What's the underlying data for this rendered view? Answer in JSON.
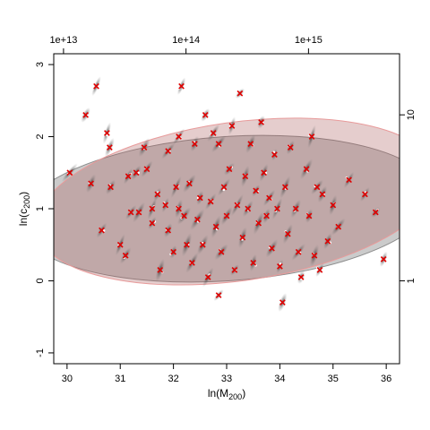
{
  "chart_data": {
    "type": "scatter",
    "xlabel_base": "ln(M",
    "xlabel_sub": "200",
    "xlabel_close": ")",
    "ylabel_base": "ln(c",
    "ylabel_sub": "200",
    "ylabel_close": ")",
    "xlim": [
      29.75,
      36.25
    ],
    "ylim": [
      -1.15,
      3.15
    ],
    "x_ticks": [
      30,
      31,
      32,
      33,
      34,
      35,
      36
    ],
    "y_ticks": [
      -1,
      0,
      1,
      2,
      3
    ],
    "top_axis": {
      "scale": "log",
      "ticks": [
        {
          "value": 10000000000000.0,
          "label": "1e+13"
        },
        {
          "value": 100000000000000.0,
          "label": "1e+14"
        },
        {
          "value": 1000000000000000.0,
          "label": "1e+15"
        }
      ]
    },
    "right_axis": {
      "scale": "log",
      "ticks": [
        {
          "value": 1,
          "label": "1"
        },
        {
          "value": 10,
          "label": "10"
        }
      ]
    },
    "grid": false,
    "colors": {
      "posterior_clouds": "#555555",
      "posterior_means": "#ffffff",
      "true_values": "#e00000",
      "ellipse_estimated": "#8c8c8c",
      "ellipse_true": "#e89a9a"
    },
    "ellipses": [
      {
        "name": "estimated",
        "center": [
          33.0,
          1.0
        ],
        "semi_axes": [
          3.9,
          1.0
        ],
        "angle_deg": -4
      },
      {
        "name": "true",
        "center": [
          33.2,
          1.1
        ],
        "semi_axes": [
          3.8,
          1.1
        ],
        "angle_deg": -8
      }
    ],
    "marker_points": [
      {
        "x": 30.05,
        "y": 1.5
      },
      {
        "x": 30.35,
        "y": 2.3
      },
      {
        "x": 30.45,
        "y": 1.35
      },
      {
        "x": 30.55,
        "y": 2.7
      },
      {
        "x": 30.75,
        "y": 2.05
      },
      {
        "x": 30.8,
        "y": 1.85
      },
      {
        "x": 30.82,
        "y": 1.3
      },
      {
        "x": 30.65,
        "y": 0.7
      },
      {
        "x": 31.0,
        "y": 0.5
      },
      {
        "x": 31.15,
        "y": 1.45
      },
      {
        "x": 31.3,
        "y": 1.5
      },
      {
        "x": 31.2,
        "y": 0.95
      },
      {
        "x": 31.1,
        "y": 0.35
      },
      {
        "x": 31.35,
        "y": 0.95
      },
      {
        "x": 31.45,
        "y": 1.85
      },
      {
        "x": 31.5,
        "y": 1.55
      },
      {
        "x": 31.6,
        "y": 1.0
      },
      {
        "x": 31.6,
        "y": 0.8
      },
      {
        "x": 31.7,
        "y": 1.2
      },
      {
        "x": 31.75,
        "y": 0.15
      },
      {
        "x": 31.85,
        "y": 1.05
      },
      {
        "x": 31.9,
        "y": 1.8
      },
      {
        "x": 31.9,
        "y": 0.7
      },
      {
        "x": 32.0,
        "y": 0.4
      },
      {
        "x": 32.05,
        "y": 1.3
      },
      {
        "x": 32.1,
        "y": 1.0
      },
      {
        "x": 32.1,
        "y": 2.0
      },
      {
        "x": 32.15,
        "y": 2.7
      },
      {
        "x": 32.2,
        "y": 0.9
      },
      {
        "x": 32.25,
        "y": 0.5
      },
      {
        "x": 32.3,
        "y": 1.35
      },
      {
        "x": 32.35,
        "y": 0.25
      },
      {
        "x": 32.4,
        "y": 1.9
      },
      {
        "x": 32.45,
        "y": 0.85
      },
      {
        "x": 32.5,
        "y": 1.15
      },
      {
        "x": 32.55,
        "y": 0.5
      },
      {
        "x": 32.6,
        "y": 2.3
      },
      {
        "x": 32.65,
        "y": 0.05
      },
      {
        "x": 32.7,
        "y": 1.1
      },
      {
        "x": 32.75,
        "y": 2.05
      },
      {
        "x": 32.8,
        "y": 0.75
      },
      {
        "x": 32.85,
        "y": 1.9
      },
      {
        "x": 32.85,
        "y": -0.2
      },
      {
        "x": 32.9,
        "y": 0.4
      },
      {
        "x": 32.95,
        "y": 1.3
      },
      {
        "x": 33.0,
        "y": 0.9
      },
      {
        "x": 33.05,
        "y": 1.55
      },
      {
        "x": 33.1,
        "y": 2.15
      },
      {
        "x": 33.15,
        "y": 0.15
      },
      {
        "x": 33.2,
        "y": 1.05
      },
      {
        "x": 33.25,
        "y": 2.6
      },
      {
        "x": 33.3,
        "y": 0.6
      },
      {
        "x": 33.35,
        "y": 1.45
      },
      {
        "x": 33.4,
        "y": 1.0
      },
      {
        "x": 33.45,
        "y": 1.9
      },
      {
        "x": 33.5,
        "y": 0.25
      },
      {
        "x": 33.55,
        "y": 1.25
      },
      {
        "x": 33.6,
        "y": 0.8
      },
      {
        "x": 33.65,
        "y": 2.2
      },
      {
        "x": 33.7,
        "y": 1.5
      },
      {
        "x": 33.75,
        "y": 0.9
      },
      {
        "x": 33.8,
        "y": 1.15
      },
      {
        "x": 33.85,
        "y": 0.45
      },
      {
        "x": 33.9,
        "y": 1.75
      },
      {
        "x": 33.95,
        "y": 1.0
      },
      {
        "x": 34.0,
        "y": 0.2
      },
      {
        "x": 34.05,
        "y": -0.3
      },
      {
        "x": 34.1,
        "y": 1.3
      },
      {
        "x": 34.15,
        "y": 0.65
      },
      {
        "x": 34.2,
        "y": 1.85
      },
      {
        "x": 34.3,
        "y": 1.0
      },
      {
        "x": 34.35,
        "y": 0.4
      },
      {
        "x": 34.4,
        "y": 0.05
      },
      {
        "x": 34.5,
        "y": 1.55
      },
      {
        "x": 34.55,
        "y": 0.9
      },
      {
        "x": 34.6,
        "y": 2.0
      },
      {
        "x": 34.65,
        "y": 0.35
      },
      {
        "x": 34.7,
        "y": 1.3
      },
      {
        "x": 34.75,
        "y": 0.15
      },
      {
        "x": 34.8,
        "y": 1.2
      },
      {
        "x": 34.9,
        "y": 0.55
      },
      {
        "x": 35.0,
        "y": 1.05
      },
      {
        "x": 35.1,
        "y": 0.75
      },
      {
        "x": 35.3,
        "y": 1.4
      },
      {
        "x": 35.6,
        "y": 1.2
      },
      {
        "x": 35.8,
        "y": 0.95
      },
      {
        "x": 35.95,
        "y": 0.3
      }
    ]
  }
}
